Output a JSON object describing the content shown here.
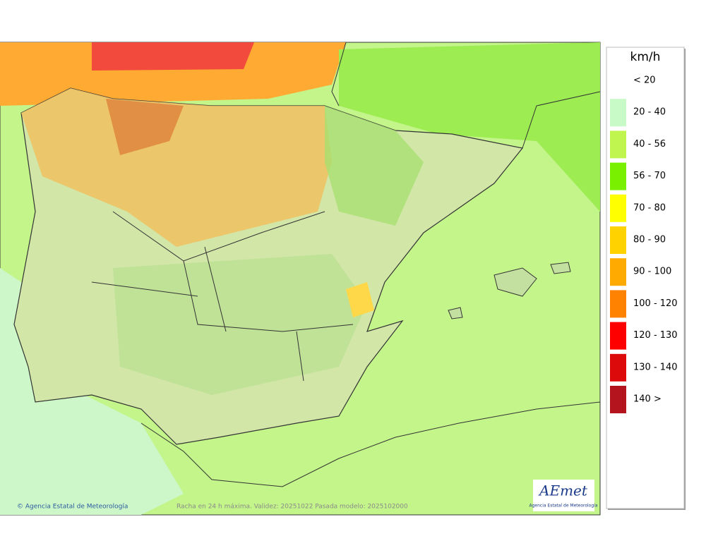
{
  "legend": {
    "title": "km/h",
    "items": [
      {
        "label": "< 20",
        "color": "#ffffff"
      },
      {
        "label": "20 - 40",
        "color": "#c8fac8"
      },
      {
        "label": "40 - 56",
        "color": "#c0f550"
      },
      {
        "label": "56 - 70",
        "color": "#78f000"
      },
      {
        "label": "70 - 80",
        "color": "#ffff00"
      },
      {
        "label": "80 - 90",
        "color": "#ffd200"
      },
      {
        "label": "90 - 100",
        "color": "#ffaa00"
      },
      {
        "label": "100 - 120",
        "color": "#ff8200"
      },
      {
        "label": "120 - 130",
        "color": "#ff0000"
      },
      {
        "label": "130 - 140",
        "color": "#dc0a0a"
      },
      {
        "label": "140 >",
        "color": "#b4141e"
      }
    ]
  },
  "footer": {
    "credit": "© Agencia Estatal de Meteorología",
    "caption": "Racha en 24 h máxima. Validez: 20251022 Pasada modelo: 2025102000"
  },
  "logo": {
    "name": "AEmet",
    "subtitle": "Agencia Estatal de Meteorología"
  }
}
